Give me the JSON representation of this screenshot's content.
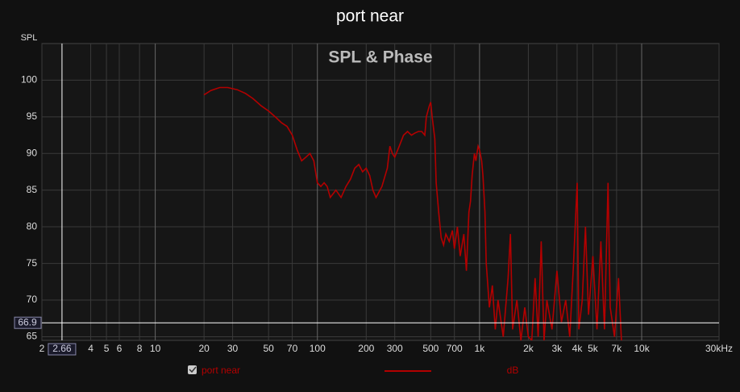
{
  "chart_data": {
    "type": "line",
    "title": "port near",
    "subtitle": "SPL & Phase",
    "y_label": "SPL",
    "x_scale": "log",
    "grid": true,
    "xlim": [
      2,
      30000
    ],
    "ylim": [
      64.5,
      105
    ],
    "xticks": [
      2,
      4,
      5,
      6,
      8,
      10,
      20,
      30,
      50,
      70,
      100,
      200,
      300,
      500,
      700,
      {
        "value": 1000,
        "label": "1k"
      },
      {
        "value": 2000,
        "label": "2k"
      },
      {
        "value": 3000,
        "label": "3k"
      },
      {
        "value": 4000,
        "label": "4k"
      },
      {
        "value": 5000,
        "label": "5k"
      },
      {
        "value": 7000,
        "label": "7k"
      },
      {
        "value": 10000,
        "label": "10k"
      },
      {
        "value": 30000,
        "label": "30kHz"
      }
    ],
    "yticks": [
      65,
      70,
      75,
      80,
      85,
      90,
      95,
      100
    ],
    "cursor": {
      "x": 2.66,
      "y": 66.9
    },
    "series": [
      {
        "name": "port near",
        "unit": "dB",
        "color": "#b30000",
        "x": [
          20,
          22,
          25,
          28,
          32,
          36,
          40,
          45,
          50,
          55,
          60,
          65,
          70,
          75,
          80,
          85,
          90,
          95,
          100,
          105,
          110,
          115,
          120,
          130,
          140,
          150,
          160,
          170,
          180,
          190,
          200,
          210,
          220,
          230,
          250,
          270,
          280,
          290,
          300,
          320,
          340,
          360,
          380,
          400,
          420,
          440,
          460,
          470,
          490,
          500,
          510,
          530,
          540,
          560,
          580,
          600,
          620,
          650,
          680,
          700,
          730,
          760,
          800,
          830,
          860,
          880,
          900,
          930,
          950,
          980,
          1000,
          1030,
          1050,
          1080,
          1100,
          1150,
          1200,
          1250,
          1300,
          1400,
          1500,
          1550,
          1600,
          1700,
          1800,
          1900,
          2000,
          2100,
          2200,
          2300,
          2400,
          2500,
          2600,
          2800,
          3000,
          3200,
          3400,
          3600,
          3800,
          4000,
          4100,
          4300,
          4500,
          4700,
          5000,
          5300,
          5600,
          5900,
          6200,
          6400,
          6800,
          7200,
          7500
        ],
        "values": [
          98,
          98.6,
          99,
          99,
          98.7,
          98.2,
          97.5,
          96.5,
          95.8,
          95,
          94.2,
          93.7,
          92.5,
          90.5,
          89,
          89.5,
          90,
          89,
          86,
          85.5,
          86,
          85.5,
          84,
          85,
          84,
          85.5,
          86.5,
          88,
          88.5,
          87.5,
          88,
          87,
          85,
          84,
          85.5,
          88,
          91,
          90,
          89.5,
          91,
          92.5,
          93,
          92.5,
          92.8,
          93,
          93,
          92.5,
          95,
          96.5,
          97,
          95,
          92,
          86,
          82,
          78.5,
          77.5,
          79,
          78,
          79.5,
          77,
          80,
          76,
          79,
          74,
          82,
          83.5,
          87,
          90,
          89,
          91,
          90.5,
          89,
          87,
          82,
          75,
          69,
          72,
          66,
          70,
          65,
          73,
          79,
          66,
          70,
          64.5,
          69,
          65,
          64.5,
          73,
          65,
          78,
          64.5,
          70,
          66,
          74,
          67,
          70,
          65,
          75,
          86,
          66,
          70,
          80,
          68,
          76,
          66,
          78,
          66,
          86,
          69,
          65,
          73,
          64.5
        ]
      }
    ]
  }
}
